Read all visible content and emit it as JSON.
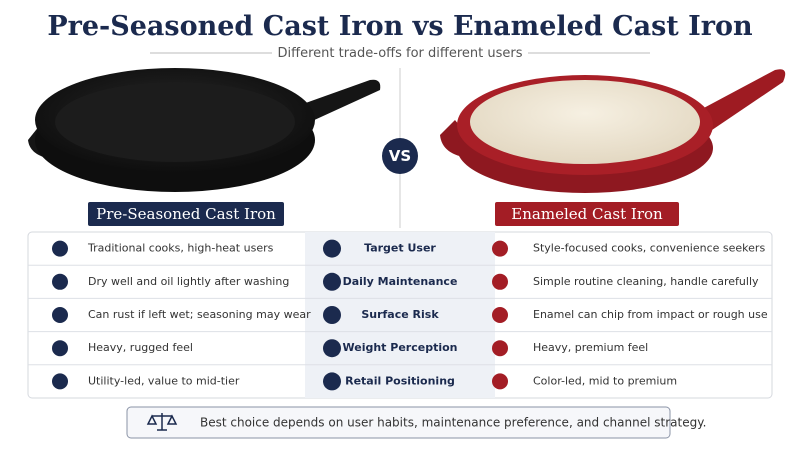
{
  "title": "Pre-Seasoned Cast Iron vs Enameled Cast Iron",
  "subtitle": "Different trade-offs for different users",
  "vs": "VS",
  "left_label": "Pre-Seasoned Cast Iron",
  "right_label": "Enameled Cast Iron",
  "rows": [
    {
      "left": "Traditional cooks, high-heat users",
      "center": "Target User",
      "right": "Style-focused cooks, convenience seekers"
    },
    {
      "left": "Dry well and oil lightly after washing",
      "center": "Daily Maintenance",
      "right": "Simple routine cleaning, handle carefully"
    },
    {
      "left": "Can rust if left wet; seasoning may wear",
      "center": "Surface Risk",
      "right": "Enamel can chip from impact or rough use"
    },
    {
      "left": "Heavy, rugged feel",
      "center": "Weight Perception",
      "right": "Heavy, premium feel"
    },
    {
      "left": "Utility-led, value to mid-tier",
      "center": "Retail Positioning",
      "right": "Color-led, mid to premium"
    }
  ],
  "footer": "Best choice depends on user habits, maintenance preference, and channel strategy."
}
